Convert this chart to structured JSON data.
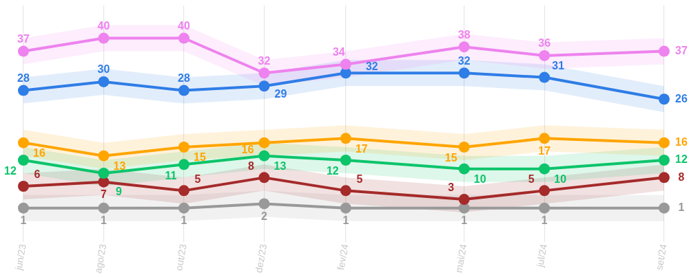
{
  "chart_data": {
    "type": "line",
    "x": [
      "2023-06-01",
      "2023-08-01",
      "2023-10-01",
      "2023-12-01",
      "2024-02-01",
      "2024-05-01",
      "2024-07-01",
      "2024-09-30"
    ],
    "xlim": [
      "2023-06-01",
      "2024-09-30"
    ],
    "xticks": [
      {
        "value": "2023-06-01",
        "label": "jun/23"
      },
      {
        "value": "2023-08-01",
        "label": "ago/23"
      },
      {
        "value": "2023-10-01",
        "label": "out/23"
      },
      {
        "value": "2023-12-01",
        "label": "dez/23"
      },
      {
        "value": "2024-02-01",
        "label": "fev/24"
      },
      {
        "value": "2024-05-01",
        "label": "mai/24"
      },
      {
        "value": "2024-07-01",
        "label": "jul/24"
      },
      {
        "value": "2024-09-30",
        "label": "set/24"
      }
    ],
    "ylim": [
      -5.5,
      47.5
    ],
    "series": [
      {
        "color": "#ee82ee",
        "values": [
          37,
          40,
          40,
          32,
          34,
          38,
          36,
          37
        ],
        "upper": [
          40,
          43,
          43,
          35,
          37,
          41,
          39,
          40
        ],
        "lower": [
          34,
          37,
          37,
          29,
          31,
          35,
          33,
          34
        ]
      },
      {
        "color": "#2f7de6",
        "values": [
          28,
          30,
          28,
          29,
          32,
          32,
          31,
          26
        ],
        "upper": [
          31,
          33,
          31,
          32,
          35,
          35,
          34,
          29
        ],
        "lower": [
          25,
          27,
          25,
          26,
          29,
          29,
          28,
          23
        ]
      },
      {
        "color": "#ffa500",
        "values": [
          16,
          13,
          15,
          16,
          17,
          15,
          17,
          16
        ],
        "upper": [
          19,
          16,
          18,
          19,
          20,
          18,
          20,
          19
        ],
        "lower": [
          13,
          10,
          12,
          13,
          14,
          12,
          14,
          13
        ]
      },
      {
        "color": "#0cc46a",
        "values": [
          12,
          9,
          11,
          13,
          12,
          10,
          10,
          12
        ],
        "upper": [
          15,
          12,
          14,
          16,
          15,
          13,
          13,
          15
        ],
        "lower": [
          9,
          6,
          8,
          10,
          9,
          7,
          7,
          9
        ]
      },
      {
        "color": "#a52a2a",
        "values": [
          6,
          7,
          5,
          8,
          5,
          3,
          5,
          8
        ],
        "upper": [
          9,
          10,
          8,
          11,
          8,
          6,
          8,
          11
        ],
        "lower": [
          3,
          4,
          2,
          5,
          2,
          0,
          2,
          5
        ]
      },
      {
        "color": "#999999",
        "values": [
          1,
          1,
          1,
          2,
          1,
          1,
          1,
          1
        ],
        "upper": [
          4,
          4,
          4,
          5,
          4,
          4,
          4,
          4
        ],
        "lower": [
          -2,
          -2,
          -2,
          -1,
          -2,
          -2,
          -2,
          -2
        ]
      }
    ],
    "grid": "x",
    "tick_labels": "x",
    "marker": "circle",
    "data_labels": true
  }
}
